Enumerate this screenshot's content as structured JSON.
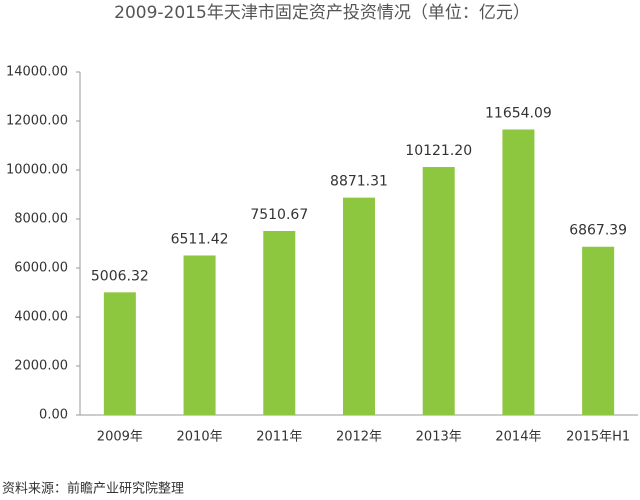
{
  "chart_data": {
    "type": "bar",
    "title": "2009-2015年天津市固定资产投资情况（单位：亿元）",
    "categories": [
      "2009年",
      "2010年",
      "2011年",
      "2012年",
      "2013年",
      "2014年",
      "2015年H1"
    ],
    "values": [
      5006.32,
      6511.42,
      7510.67,
      8871.31,
      10121.2,
      11654.09,
      6867.39
    ],
    "value_labels": [
      "5006.32",
      "6511.42",
      "7510.67",
      "8871.31",
      "10121.20",
      "11654.09",
      "6867.39"
    ],
    "color": "#8dc63f",
    "ylim": [
      0,
      14000
    ],
    "yticks": [
      {
        "value": 0,
        "label": "0.00"
      },
      {
        "value": 2000,
        "label": "2000.00"
      },
      {
        "value": 4000,
        "label": "4000.00"
      },
      {
        "value": 6000,
        "label": "6000.00"
      },
      {
        "value": 8000,
        "label": "8000.00"
      },
      {
        "value": 10000,
        "label": "10000.00"
      },
      {
        "value": 12000,
        "label": "12000.00"
      },
      {
        "value": 14000,
        "label": "14000.00"
      }
    ],
    "grid": false,
    "source": "资料来源：前瞻产业研究院整理"
  }
}
